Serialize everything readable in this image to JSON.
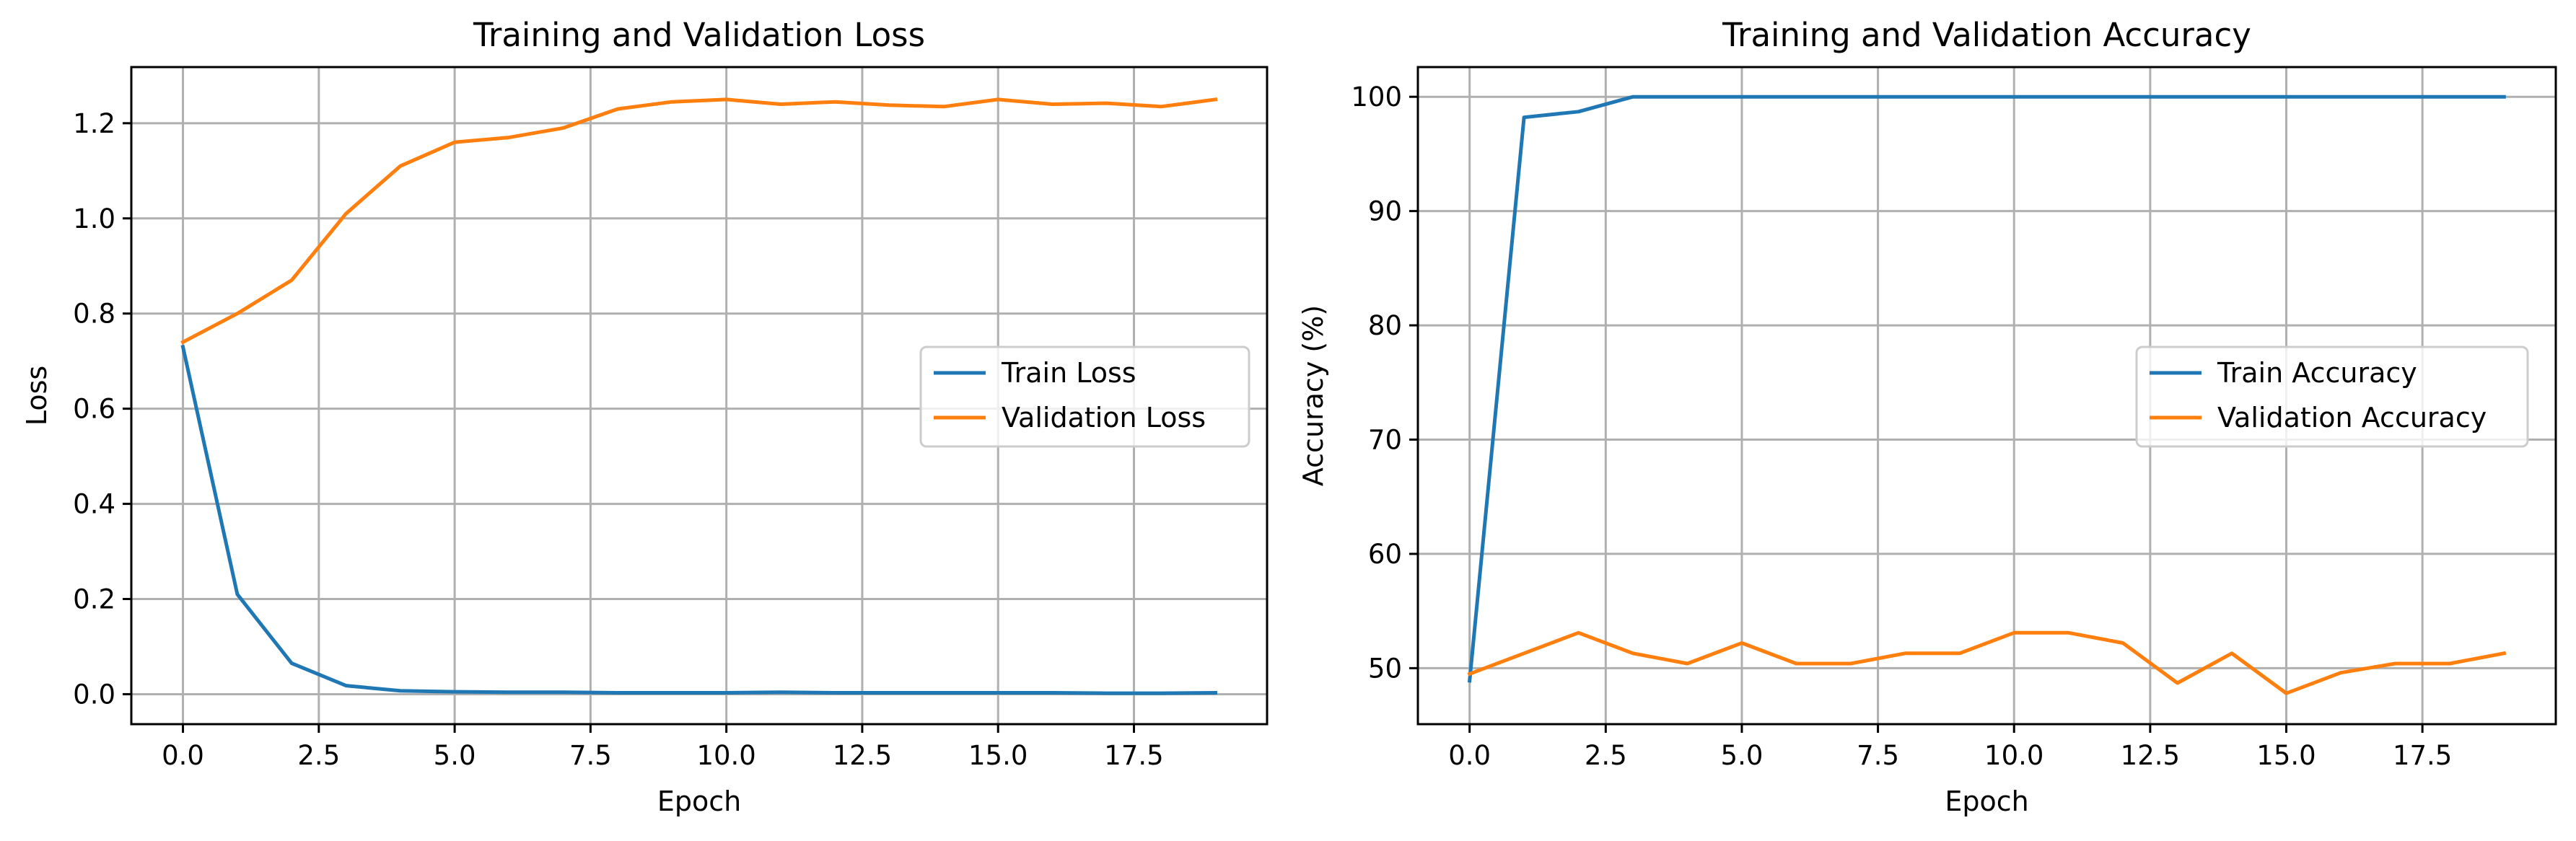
{
  "chart_data": [
    {
      "type": "line",
      "title": "Training and Validation Loss",
      "xlabel": "Epoch",
      "ylabel": "Loss",
      "xlim": [
        -0.95,
        19.95
      ],
      "ylim": [
        -0.063,
        1.318
      ],
      "xticks": [
        0.0,
        2.5,
        5.0,
        7.5,
        10.0,
        12.5,
        15.0,
        17.5
      ],
      "xtick_labels": [
        "0.0",
        "2.5",
        "5.0",
        "7.5",
        "10.0",
        "12.5",
        "15.0",
        "17.5"
      ],
      "yticks": [
        0.0,
        0.2,
        0.4,
        0.6,
        0.8,
        1.0,
        1.2
      ],
      "ytick_labels": [
        "0.0",
        "0.2",
        "0.4",
        "0.6",
        "0.8",
        "1.0",
        "1.2"
      ],
      "grid": true,
      "legend_position": "center-right",
      "x": [
        0,
        1,
        2,
        3,
        4,
        5,
        6,
        7,
        8,
        9,
        10,
        11,
        12,
        13,
        14,
        15,
        16,
        17,
        18,
        19
      ],
      "series": [
        {
          "name": "Train Loss",
          "color": "#1f77b4",
          "values": [
            0.73,
            0.21,
            0.065,
            0.018,
            0.007,
            0.005,
            0.004,
            0.004,
            0.003,
            0.003,
            0.003,
            0.004,
            0.003,
            0.003,
            0.003,
            0.003,
            0.003,
            0.002,
            0.002,
            0.003
          ]
        },
        {
          "name": "Validation Loss",
          "color": "#ff7f0e",
          "values": [
            0.74,
            0.8,
            0.87,
            1.01,
            1.11,
            1.16,
            1.17,
            1.19,
            1.23,
            1.245,
            1.25,
            1.24,
            1.245,
            1.238,
            1.235,
            1.25,
            1.24,
            1.242,
            1.235,
            1.25
          ]
        }
      ]
    },
    {
      "type": "line",
      "title": "Training and Validation Accuracy",
      "xlabel": "Epoch",
      "ylabel": "Accuracy (%)",
      "xlim": [
        -0.95,
        19.95
      ],
      "ylim": [
        45.1,
        102.6
      ],
      "xticks": [
        0.0,
        2.5,
        5.0,
        7.5,
        10.0,
        12.5,
        15.0,
        17.5
      ],
      "xtick_labels": [
        "0.0",
        "2.5",
        "5.0",
        "7.5",
        "10.0",
        "12.5",
        "15.0",
        "17.5"
      ],
      "yticks": [
        50,
        60,
        70,
        80,
        90,
        100
      ],
      "ytick_labels": [
        "50",
        "60",
        "70",
        "80",
        "90",
        "100"
      ],
      "grid": true,
      "legend_position": "center-right",
      "x": [
        0,
        1,
        2,
        3,
        4,
        5,
        6,
        7,
        8,
        9,
        10,
        11,
        12,
        13,
        14,
        15,
        16,
        17,
        18,
        19
      ],
      "series": [
        {
          "name": "Train Accuracy",
          "color": "#1f77b4",
          "values": [
            48.9,
            98.2,
            98.7,
            100,
            100,
            100,
            100,
            100,
            100,
            100,
            100,
            100,
            100,
            100,
            100,
            100,
            100,
            100,
            100,
            100
          ]
        },
        {
          "name": "Validation Accuracy",
          "color": "#ff7f0e",
          "values": [
            49.5,
            51.3,
            53.1,
            51.3,
            50.4,
            52.2,
            50.4,
            50.4,
            51.3,
            51.3,
            53.1,
            53.1,
            52.2,
            48.7,
            51.3,
            47.8,
            49.6,
            50.4,
            50.4,
            51.3
          ]
        }
      ]
    }
  ]
}
